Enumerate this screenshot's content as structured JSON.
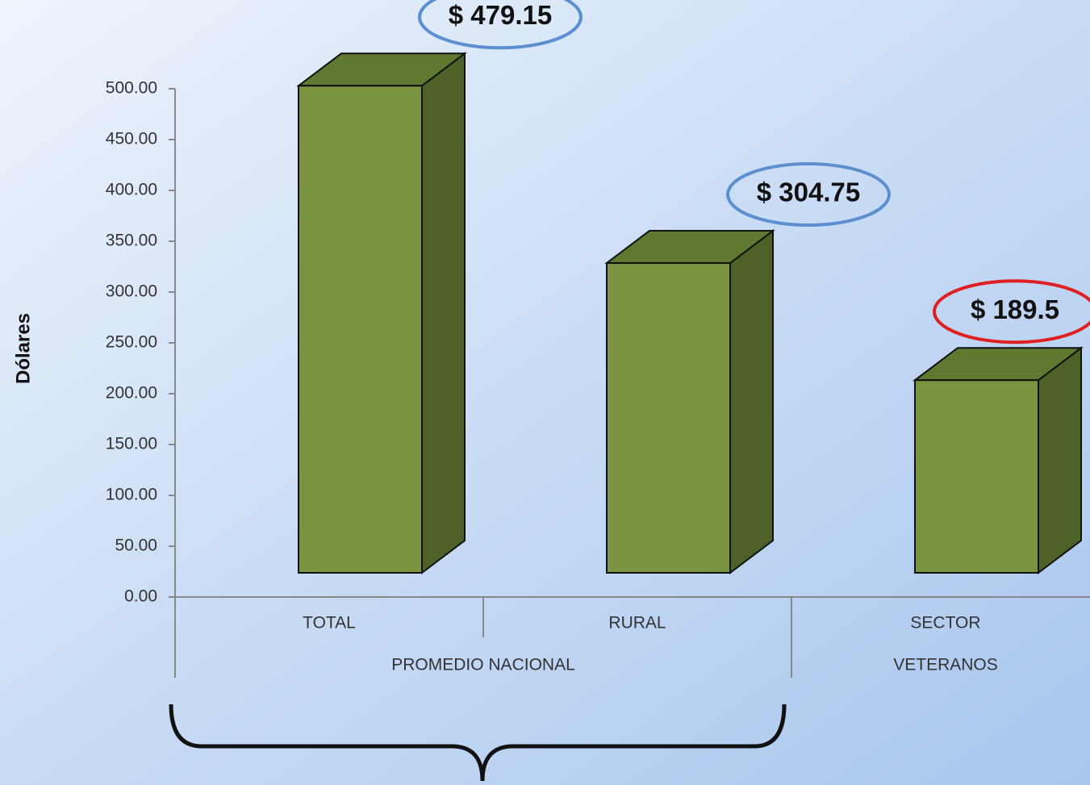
{
  "chart_data": {
    "type": "bar3d",
    "ylabel": "Dólares",
    "categories": [
      "TOTAL",
      "RURAL",
      "SECTOR"
    ],
    "groups": [
      {
        "label": "PROMEDIO NACIONAL",
        "span": 2
      },
      {
        "label": "VETERANOS",
        "span": 1
      }
    ],
    "values": [
      479.15,
      304.75,
      189.5
    ],
    "value_labels": [
      "$ 479.15",
      "$ 304.75",
      "$ 189.5"
    ],
    "label_outline_colors": [
      "#5b8fd0",
      "#5b8fd0",
      "#e02020"
    ],
    "color": "#7a9440",
    "ylim": [
      0,
      500
    ],
    "yticks": [
      {
        "value": 0,
        "label": "0.00"
      },
      {
        "value": 50,
        "label": "50.00"
      },
      {
        "value": 100,
        "label": "100.00"
      },
      {
        "value": 150,
        "label": "150.00"
      },
      {
        "value": 200,
        "label": "200.00"
      },
      {
        "value": 250,
        "label": "250.00"
      },
      {
        "value": 300,
        "label": "300.00"
      },
      {
        "value": 350,
        "label": "350.00"
      },
      {
        "value": 400,
        "label": "400.00"
      },
      {
        "value": 450,
        "label": "450.00"
      },
      {
        "value": 500,
        "label": "500.00"
      }
    ]
  }
}
